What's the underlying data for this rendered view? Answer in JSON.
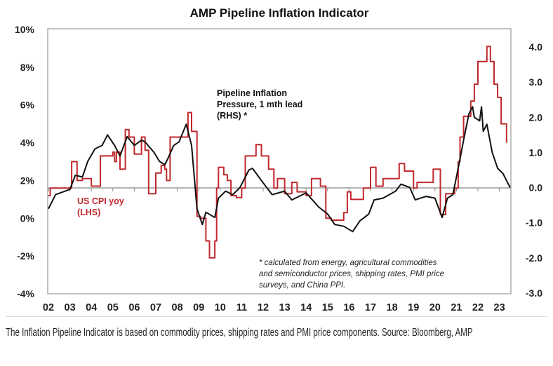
{
  "chart_data": {
    "type": "line",
    "title": "AMP Pipeline Inflation Indicator",
    "x_ticks": [
      "02",
      "03",
      "04",
      "05",
      "06",
      "07",
      "08",
      "09",
      "10",
      "11",
      "12",
      "13",
      "14",
      "15",
      "16",
      "17",
      "18",
      "19",
      "20",
      "21",
      "22",
      "23"
    ],
    "y_left": {
      "ticks": [
        "10%",
        "8%",
        "6%",
        "4%",
        "2%",
        "0%",
        "-2%",
        "-4%"
      ],
      "range": [
        -4,
        10
      ]
    },
    "y_right": {
      "ticks": [
        "4.0",
        "3.0",
        "2.0",
        "1.0",
        "0.0",
        "-1.0",
        "-2.0",
        "-3.0"
      ],
      "range": [
        -3,
        4
      ]
    },
    "xlim": [
      "2002-01",
      "2023-07"
    ],
    "grid": false,
    "series": [
      {
        "name": "US CPI yoy (LHS)",
        "label_lines": [
          "US CPI yoy",
          "(LHS)"
        ],
        "axis": "left",
        "color": "#c0282d",
        "points": [
          [
            "2002-01",
            1.2
          ],
          [
            "2002-02",
            1.6
          ],
          [
            "2003-02",
            3.0
          ],
          [
            "2003-05",
            2.0
          ],
          [
            "2003-08",
            2.1
          ],
          [
            "2004-01",
            1.7
          ],
          [
            "2004-06",
            3.3
          ],
          [
            "2005-01",
            3.5
          ],
          [
            "2005-02",
            3.0
          ],
          [
            "2005-03",
            3.5
          ],
          [
            "2005-05",
            2.6
          ],
          [
            "2005-08",
            4.7
          ],
          [
            "2005-10",
            4.3
          ],
          [
            "2006-01",
            3.4
          ],
          [
            "2006-05",
            4.3
          ],
          [
            "2006-07",
            3.6
          ],
          [
            "2006-09",
            1.3
          ],
          [
            "2007-01",
            2.4
          ],
          [
            "2007-04",
            2.8
          ],
          [
            "2007-06",
            2.6
          ],
          [
            "2007-07",
            2.0
          ],
          [
            "2007-09",
            4.3
          ],
          [
            "2008-01",
            4.3
          ],
          [
            "2008-07",
            5.6
          ],
          [
            "2008-09",
            4.6
          ],
          [
            "2008-12",
            0.1
          ],
          [
            "2009-02",
            0.0
          ],
          [
            "2009-05",
            -1.2
          ],
          [
            "2009-07",
            -2.1
          ],
          [
            "2009-10",
            -1.2
          ],
          [
            "2009-11",
            1.6
          ],
          [
            "2009-12",
            2.7
          ],
          [
            "2010-03",
            2.3
          ],
          [
            "2010-05",
            2.0
          ],
          [
            "2010-07",
            1.2
          ],
          [
            "2010-10",
            1.1
          ],
          [
            "2011-01",
            1.6
          ],
          [
            "2011-03",
            3.3
          ],
          [
            "2011-09",
            3.9
          ],
          [
            "2011-12",
            3.3
          ],
          [
            "2012-04",
            2.6
          ],
          [
            "2012-07",
            1.6
          ],
          [
            "2012-09",
            2.1
          ],
          [
            "2013-01",
            1.3
          ],
          [
            "2013-05",
            1.9
          ],
          [
            "2013-08",
            1.4
          ],
          [
            "2014-01",
            1.2
          ],
          [
            "2014-04",
            2.1
          ],
          [
            "2014-09",
            1.7
          ],
          [
            "2014-12",
            0.0
          ],
          [
            "2015-03",
            -0.1
          ],
          [
            "2015-10",
            0.3
          ],
          [
            "2015-12",
            1.4
          ],
          [
            "2016-02",
            1.0
          ],
          [
            "2016-07",
            1.0
          ],
          [
            "2016-09",
            1.6
          ],
          [
            "2017-01",
            2.7
          ],
          [
            "2017-04",
            1.7
          ],
          [
            "2017-08",
            2.1
          ],
          [
            "2018-05",
            2.9
          ],
          [
            "2018-08",
            2.5
          ],
          [
            "2019-01",
            1.6
          ],
          [
            "2019-03",
            1.9
          ],
          [
            "2019-12",
            2.6
          ],
          [
            "2020-04",
            0.2
          ],
          [
            "2020-07",
            1.3
          ],
          [
            "2020-12",
            1.6
          ],
          [
            "2021-02",
            3.0
          ],
          [
            "2021-03",
            4.3
          ],
          [
            "2021-05",
            5.4
          ],
          [
            "2021-09",
            6.2
          ],
          [
            "2021-11",
            7.1
          ],
          [
            "2022-01",
            8.3
          ],
          [
            "2022-06",
            9.1
          ],
          [
            "2022-08",
            8.3
          ],
          [
            "2022-10",
            7.1
          ],
          [
            "2022-12",
            6.4
          ],
          [
            "2023-02",
            5.0
          ],
          [
            "2023-05",
            4.0
          ]
        ]
      },
      {
        "name": "Pipeline Inflation Pressure, 1 mth lead (RHS) *",
        "label_lines": [
          "Pipeline Inflation",
          "Pressure, 1 mth lead",
          "(RHS) *"
        ],
        "axis": "right",
        "color": "#111111",
        "points": [
          [
            "2002-01",
            -0.6
          ],
          [
            "2002-05",
            -0.2
          ],
          [
            "2003-01",
            -0.05
          ],
          [
            "2003-04",
            0.35
          ],
          [
            "2003-08",
            0.3
          ],
          [
            "2003-11",
            0.75
          ],
          [
            "2004-03",
            1.1
          ],
          [
            "2004-07",
            1.2
          ],
          [
            "2004-10",
            1.5
          ],
          [
            "2005-02",
            1.2
          ],
          [
            "2005-05",
            0.9
          ],
          [
            "2005-09",
            1.45
          ],
          [
            "2006-01",
            1.2
          ],
          [
            "2006-05",
            1.35
          ],
          [
            "2006-07",
            1.3
          ],
          [
            "2006-12",
            1.0
          ],
          [
            "2007-03",
            0.75
          ],
          [
            "2007-06",
            0.65
          ],
          [
            "2007-08",
            0.85
          ],
          [
            "2007-11",
            1.2
          ],
          [
            "2008-02",
            1.3
          ],
          [
            "2008-06",
            1.8
          ],
          [
            "2008-09",
            1.2
          ],
          [
            "2008-12",
            -0.6
          ],
          [
            "2009-03",
            -1.05
          ],
          [
            "2009-05",
            -0.7
          ],
          [
            "2009-10",
            -0.85
          ],
          [
            "2009-12",
            -0.3
          ],
          [
            "2010-04",
            -0.1
          ],
          [
            "2010-08",
            -0.2
          ],
          [
            "2010-12",
            0.0
          ],
          [
            "2011-05",
            0.5
          ],
          [
            "2011-07",
            0.55
          ],
          [
            "2011-12",
            0.2
          ],
          [
            "2012-06",
            -0.2
          ],
          [
            "2013-01",
            -0.1
          ],
          [
            "2013-05",
            -0.35
          ],
          [
            "2014-01",
            -0.15
          ],
          [
            "2014-08",
            -0.55
          ],
          [
            "2015-01",
            -0.75
          ],
          [
            "2015-05",
            -1.05
          ],
          [
            "2015-10",
            -1.1
          ],
          [
            "2016-03",
            -1.25
          ],
          [
            "2016-07",
            -0.95
          ],
          [
            "2016-12",
            -0.75
          ],
          [
            "2017-03",
            -0.35
          ],
          [
            "2017-08",
            -0.3
          ],
          [
            "2018-03",
            -0.1
          ],
          [
            "2018-06",
            0.1
          ],
          [
            "2018-11",
            0.0
          ],
          [
            "2019-02",
            -0.35
          ],
          [
            "2019-08",
            -0.25
          ],
          [
            "2020-01",
            -0.3
          ],
          [
            "2020-05",
            -0.85
          ],
          [
            "2020-08",
            -0.3
          ],
          [
            "2020-11",
            -0.2
          ],
          [
            "2021-02",
            0.55
          ],
          [
            "2021-05",
            1.35
          ],
          [
            "2021-08",
            2.1
          ],
          [
            "2021-10",
            2.3
          ],
          [
            "2021-11",
            2.0
          ],
          [
            "2022-02",
            1.9
          ],
          [
            "2022-03",
            2.3
          ],
          [
            "2022-04",
            1.6
          ],
          [
            "2022-06",
            1.8
          ],
          [
            "2022-09",
            1.0
          ],
          [
            "2022-12",
            0.55
          ],
          [
            "2023-03",
            0.4
          ],
          [
            "2023-07",
            0.0
          ]
        ]
      }
    ],
    "annotation_lines": [
      "* calculated from energy, agricultural commodities",
      "and semiconductor prices, shipping rates, PMI price",
      "surveys, and China PPI."
    ]
  },
  "caption": "The Inflation Pipeline Indicator is based on commodity prices, shipping rates and PMI price components. Source: Bloomberg, AMP"
}
